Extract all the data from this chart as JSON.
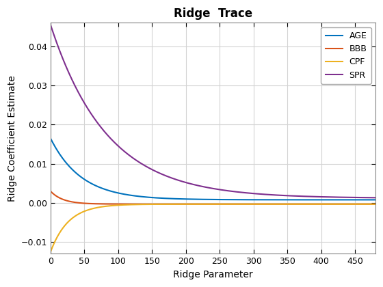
{
  "title": "Ridge  Trace",
  "xlabel": "Ridge Parameter",
  "ylabel": "Ridge Coefficient Estimate",
  "xlim": [
    0,
    480
  ],
  "ylim": [
    -0.013,
    0.046
  ],
  "xticks": [
    0,
    50,
    100,
    150,
    200,
    250,
    300,
    350,
    400,
    450
  ],
  "yticks": [
    -0.01,
    0.0,
    0.01,
    0.02,
    0.03,
    0.04
  ],
  "series": [
    {
      "label": "AGE",
      "color": "#0072BD",
      "init": 0.0165,
      "asymptote": 0.0008,
      "decay": 0.022
    },
    {
      "label": "BBB",
      "color": "#D95319",
      "init": 0.003,
      "asymptote": -0.0003,
      "decay": 0.055
    },
    {
      "label": "CPF",
      "color": "#EDB120",
      "init": -0.0125,
      "asymptote": -0.0003,
      "decay": 0.038
    },
    {
      "label": "SPR",
      "color": "#7E2F8E",
      "init": 0.0455,
      "asymptote": 0.0012,
      "decay": 0.012
    }
  ],
  "background_color": "#ffffff",
  "axes_bg_color": "#ffffff",
  "grid_color": "#d3d3d3",
  "spine_color": "#808080",
  "legend_loc": "upper right",
  "title_fontsize": 12,
  "label_fontsize": 10,
  "tick_fontsize": 9,
  "legend_fontsize": 9,
  "linewidth": 1.5
}
